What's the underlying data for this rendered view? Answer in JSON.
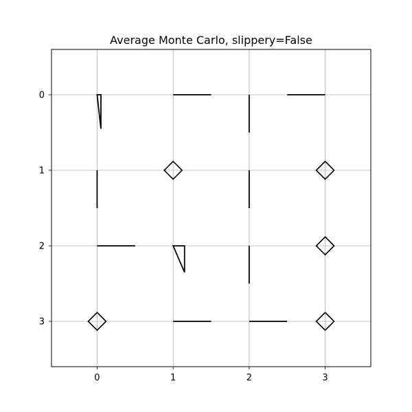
{
  "chart_data": {
    "type": "scatter",
    "title": "Average Monte Carlo, slippery=False",
    "xlabel": "",
    "ylabel": "",
    "x_ticks": [
      "0",
      "1",
      "2",
      "3"
    ],
    "y_ticks": [
      "0",
      "1",
      "2",
      "3"
    ],
    "xlim": [
      -0.6,
      3.6
    ],
    "ylim": [
      3.6,
      -0.6
    ],
    "y_inverted": true,
    "grid": true,
    "grid_color": "#b0b0b0",
    "mark_color": "#000000",
    "terminal_states": [
      {
        "x": 1,
        "y": 1
      },
      {
        "x": 3,
        "y": 1
      },
      {
        "x": 3,
        "y": 2
      },
      {
        "x": 0,
        "y": 3
      },
      {
        "x": 3,
        "y": 3
      }
    ],
    "policy_arrows": [
      {
        "x": 0,
        "y": 0,
        "dx": 0.05,
        "dy": 0.45
      },
      {
        "x": 1,
        "y": 0,
        "dx": 0.5,
        "dy": 0
      },
      {
        "x": 2,
        "y": 0,
        "dx": 0,
        "dy": 0.5
      },
      {
        "x": 3,
        "y": 0,
        "dx": -0.5,
        "dy": 0
      },
      {
        "x": 0,
        "y": 1,
        "dx": 0,
        "dy": 0.5
      },
      {
        "x": 2,
        "y": 1,
        "dx": 0,
        "dy": 0.5
      },
      {
        "x": 0,
        "y": 2,
        "dx": 0.5,
        "dy": 0
      },
      {
        "x": 1,
        "y": 2,
        "dx": 0.15,
        "dy": 0.35
      },
      {
        "x": 2,
        "y": 2,
        "dx": 0,
        "dy": 0.5
      },
      {
        "x": 1,
        "y": 3,
        "dx": 0.5,
        "dy": 0
      },
      {
        "x": 2,
        "y": 3,
        "dx": 0.5,
        "dy": 0
      }
    ]
  }
}
